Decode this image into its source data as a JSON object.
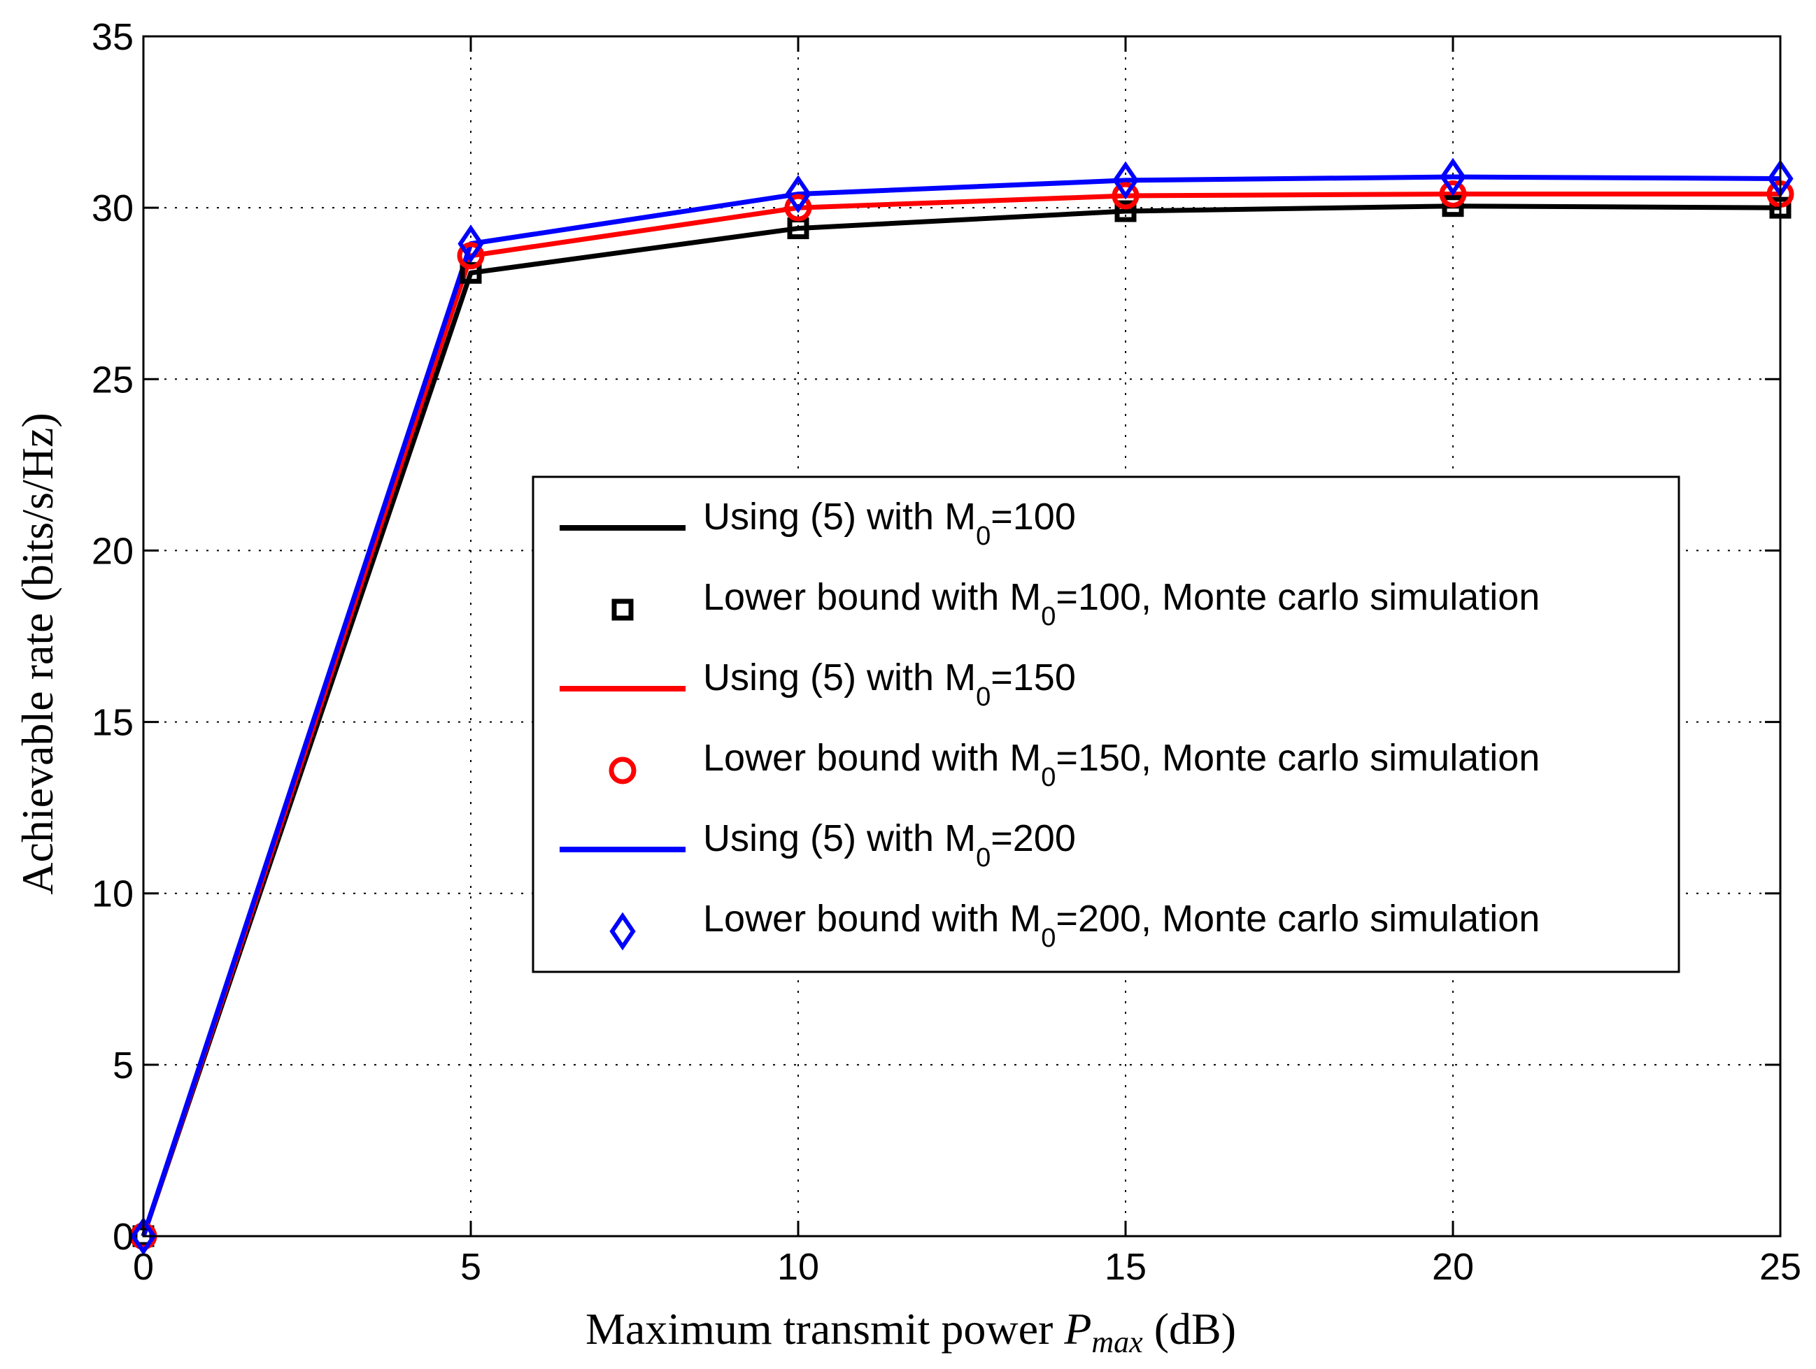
{
  "chart_data": {
    "type": "line",
    "title": "",
    "xlabel": "Maximum transmit power",
    "xlabel_var": "P",
    "xlabel_var_sub": "max",
    "xlabel_unit": "(dB)",
    "ylabel": "Achievable rate (bits/s/Hz)",
    "xlim": [
      0,
      25
    ],
    "ylim": [
      0,
      35
    ],
    "x_ticks": [
      0,
      5,
      10,
      15,
      20,
      25
    ],
    "y_ticks": [
      0,
      5,
      10,
      15,
      20,
      25,
      30,
      35
    ],
    "grid": true,
    "legend_position": "center-right",
    "series": [
      {
        "name": "Using (5) with M_0=100",
        "legend": {
          "pre": "Using (5) with M",
          "sub": "0",
          "post": "=100"
        },
        "kind": "line",
        "color": "#000000",
        "x": [
          0,
          5,
          10,
          15,
          20,
          25
        ],
        "values": [
          0,
          28.1,
          29.4,
          29.9,
          30.05,
          30.0
        ]
      },
      {
        "name": "Lower bound with M_0=100, Monte carlo simulation",
        "legend": {
          "pre": "Lower bound with M",
          "sub": "0",
          "post": "=100, Monte carlo simulation"
        },
        "kind": "marker",
        "marker": "square",
        "color": "#000000",
        "x": [
          0,
          5,
          10,
          15,
          20,
          25
        ],
        "values": [
          0,
          28.1,
          29.4,
          29.9,
          30.05,
          30.0
        ]
      },
      {
        "name": "Using (5) with M_0=150",
        "legend": {
          "pre": "Using (5) with M",
          "sub": "0",
          "post": "=150"
        },
        "kind": "line",
        "color": "#ff0000",
        "x": [
          0,
          5,
          10,
          15,
          20,
          25
        ],
        "values": [
          0,
          28.6,
          30.0,
          30.35,
          30.4,
          30.4
        ]
      },
      {
        "name": "Lower bound with M_0=150, Monte carlo simulation",
        "legend": {
          "pre": " Lower bound with M",
          "sub": "0",
          "post": "=150, Monte carlo simulation"
        },
        "kind": "marker",
        "marker": "circle",
        "color": "#ff0000",
        "x": [
          0,
          5,
          10,
          15,
          20,
          25
        ],
        "values": [
          0,
          28.6,
          30.0,
          30.35,
          30.4,
          30.4
        ]
      },
      {
        "name": "Using (5) with M_0=200",
        "legend": {
          "pre": "Using (5) with M",
          "sub": "0",
          "post": "=200"
        },
        "kind": "line",
        "color": "#0000ff",
        "x": [
          0,
          5,
          10,
          15,
          20,
          25
        ],
        "values": [
          0,
          28.95,
          30.4,
          30.8,
          30.9,
          30.85
        ]
      },
      {
        "name": "Lower bound with M_0=200, Monte carlo simulation",
        "legend": {
          "pre": "Lower bound with M",
          "sub": "0",
          "post": "=200, Monte carlo simulation"
        },
        "kind": "marker",
        "marker": "diamond",
        "color": "#0000ff",
        "x": [
          0,
          5,
          10,
          15,
          20,
          25
        ],
        "values": [
          0,
          28.95,
          30.4,
          30.8,
          30.9,
          30.85
        ]
      }
    ]
  }
}
